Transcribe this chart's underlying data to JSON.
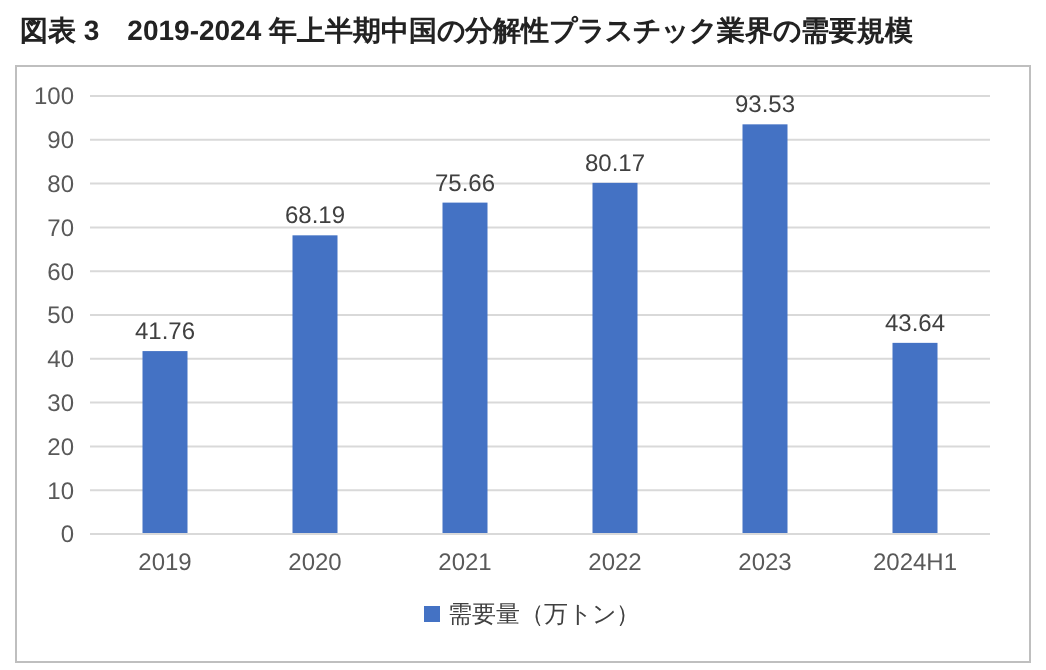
{
  "chart_data": {
    "type": "bar",
    "title": "図表 3　2019-2024 年上半期中国の分解性プラスチック業界の需要規模",
    "categories": [
      "2019",
      "2020",
      "2021",
      "2022",
      "2023",
      "2024H1"
    ],
    "series": [
      {
        "name": "需要量（万トン）",
        "color": "#4472c4",
        "values": [
          41.76,
          68.19,
          75.66,
          80.17,
          93.53,
          43.64
        ]
      }
    ],
    "ylim": [
      0,
      100
    ],
    "yticks": [
      0,
      10,
      20,
      30,
      40,
      50,
      60,
      70,
      80,
      90,
      100
    ],
    "grid": "y",
    "legend": "bottom",
    "data_labels": true
  }
}
